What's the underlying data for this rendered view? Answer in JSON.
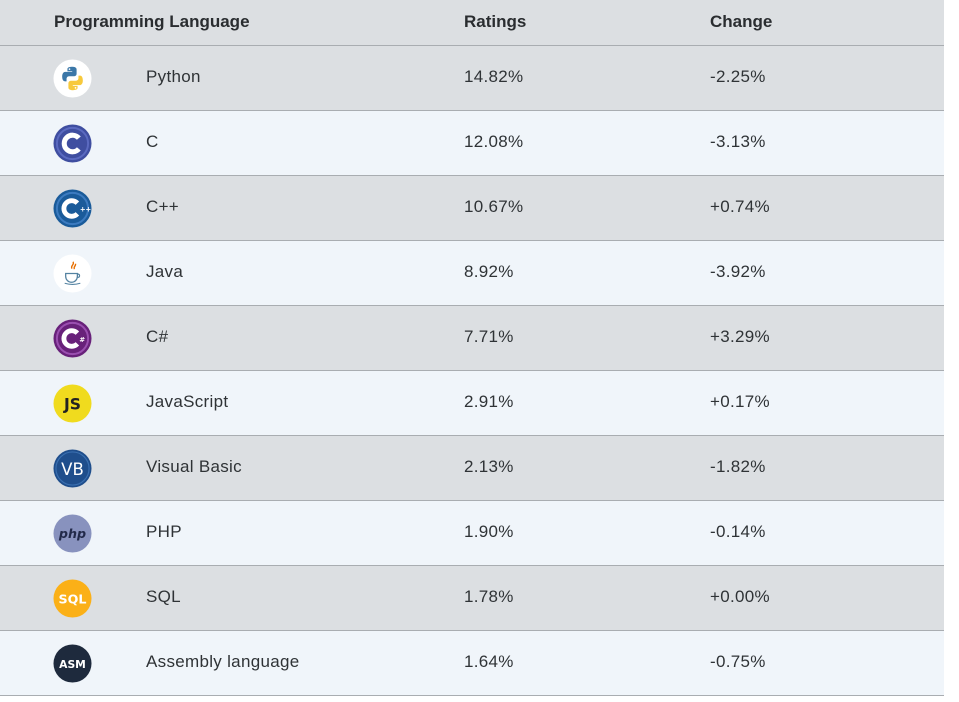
{
  "table": {
    "headers": {
      "language": "Programming Language",
      "ratings": "Ratings",
      "change": "Change"
    },
    "rows": [
      {
        "language": "Python",
        "rating": "14.82%",
        "change": "-2.25%",
        "icon": "python-logo-icon"
      },
      {
        "language": "C",
        "rating": "12.08%",
        "change": "-3.13%",
        "icon": "c-logo-icon"
      },
      {
        "language": "C++",
        "rating": "10.67%",
        "change": "+0.74%",
        "icon": "cpp-logo-icon"
      },
      {
        "language": "Java",
        "rating": "8.92%",
        "change": "-3.92%",
        "icon": "java-logo-icon"
      },
      {
        "language": "C#",
        "rating": "7.71%",
        "change": "+3.29%",
        "icon": "csharp-logo-icon"
      },
      {
        "language": "JavaScript",
        "rating": "2.91%",
        "change": "+0.17%",
        "icon": "javascript-logo-icon"
      },
      {
        "language": "Visual Basic",
        "rating": "2.13%",
        "change": "-1.82%",
        "icon": "visual-basic-logo-icon"
      },
      {
        "language": "PHP",
        "rating": "1.90%",
        "change": "-0.14%",
        "icon": "php-logo-icon"
      },
      {
        "language": "SQL",
        "rating": "1.78%",
        "change": "+0.00%",
        "icon": "sql-logo-icon"
      },
      {
        "language": "Assembly language",
        "rating": "1.64%",
        "change": "-0.75%",
        "icon": "assembly-logo-icon"
      }
    ],
    "logo_text": {
      "javascript": "JS",
      "visual_basic": "VB",
      "php": "php",
      "sql": "SQL",
      "assembly": "ASM"
    }
  }
}
